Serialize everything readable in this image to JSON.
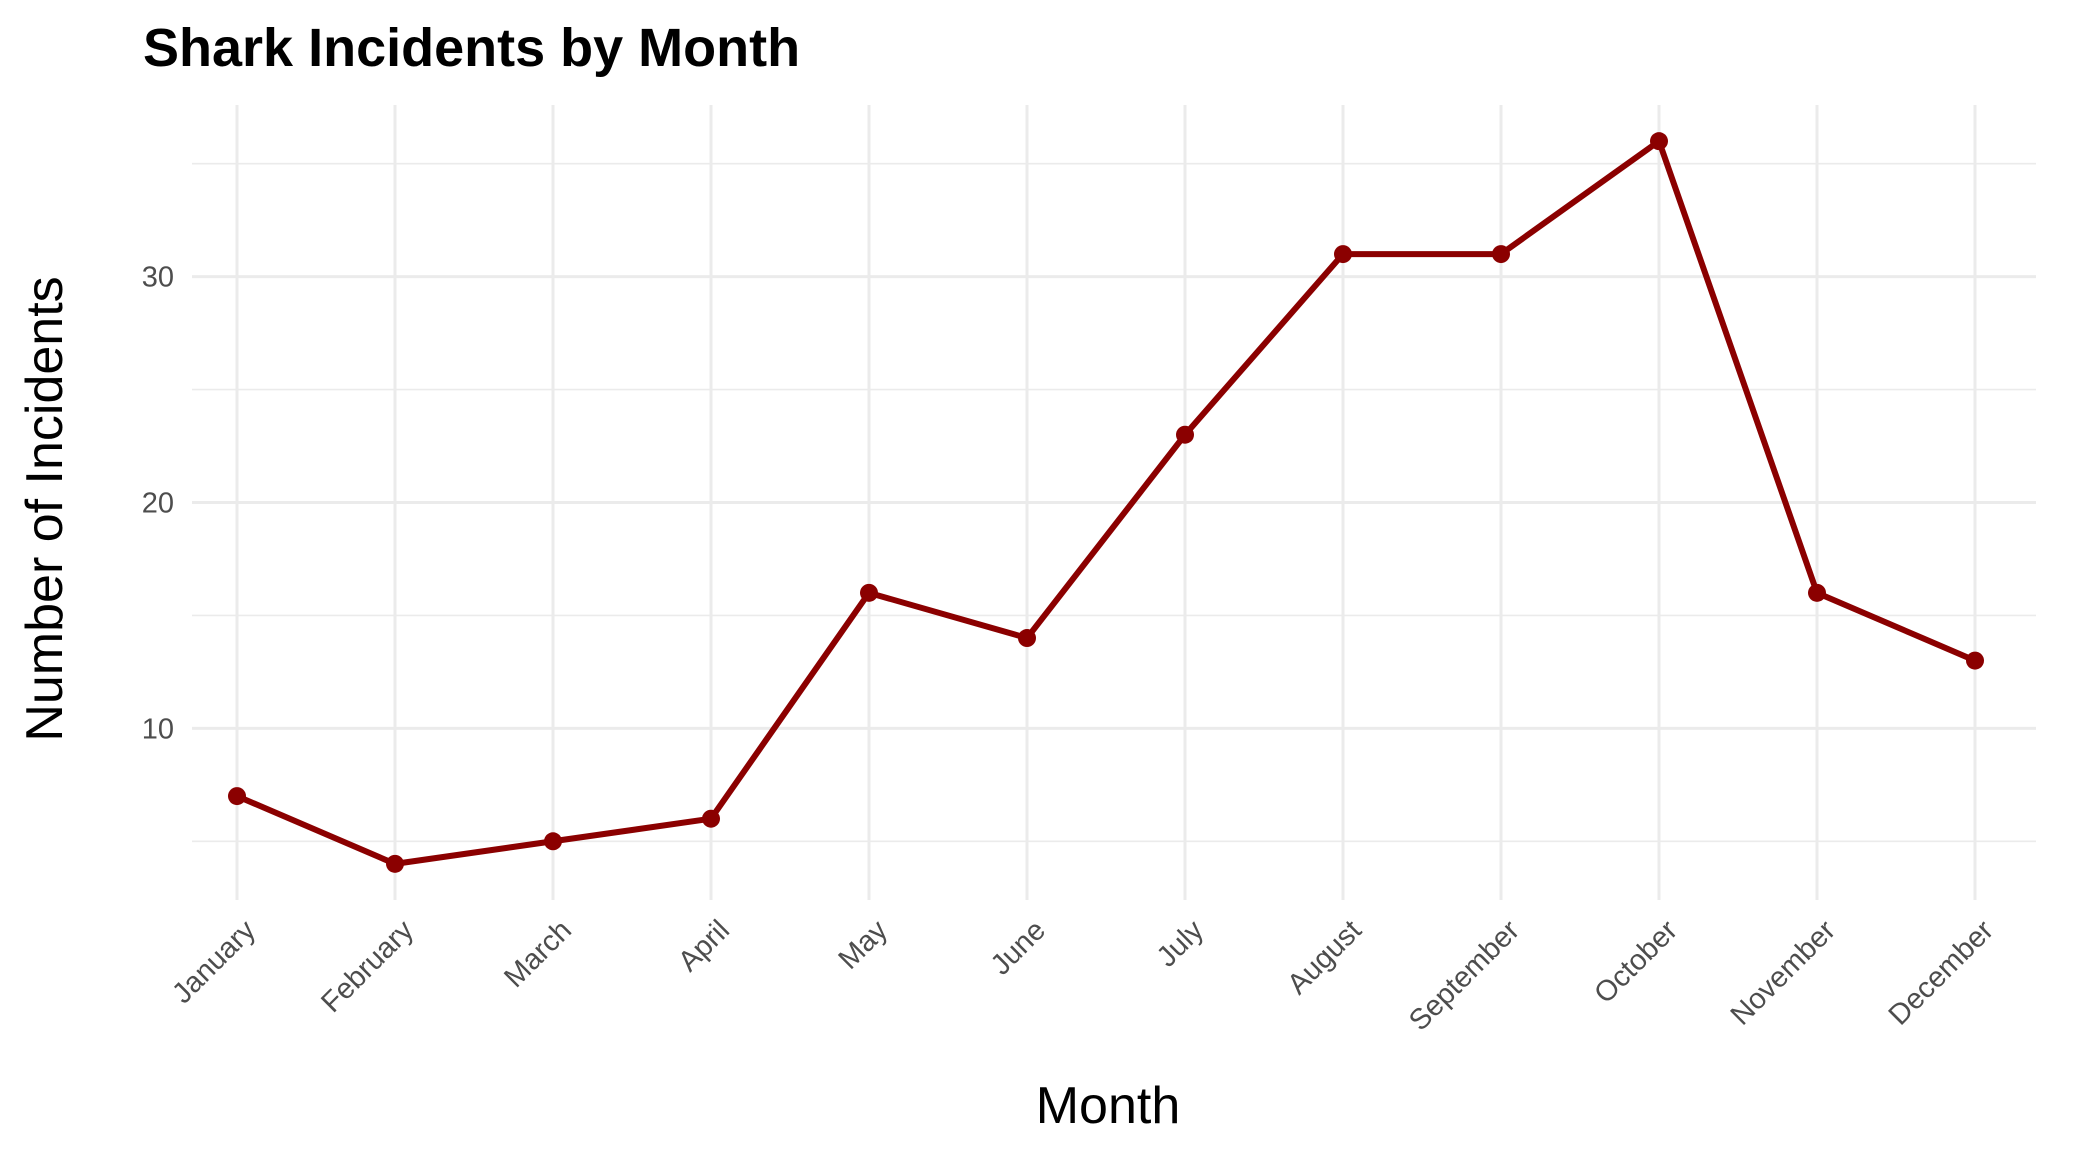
{
  "chart_data": {
    "type": "line",
    "title": "Shark Incidents by Month",
    "xlabel": "Month",
    "ylabel": "Number of Incidents",
    "categories": [
      "January",
      "February",
      "March",
      "April",
      "May",
      "June",
      "July",
      "August",
      "September",
      "October",
      "November",
      "December"
    ],
    "series": [
      {
        "values": [
          7,
          4,
          5,
          6,
          16,
          14,
          23,
          31,
          31,
          36,
          16,
          13
        ]
      }
    ],
    "yticks": [
      10,
      20,
      30
    ],
    "ylim": [
      2.4,
      37.6
    ],
    "grid": true,
    "legend": "none",
    "colors": {
      "line": "#8b0000",
      "grid": "#ebebeb",
      "tick_text": "#4d4d4d"
    }
  }
}
